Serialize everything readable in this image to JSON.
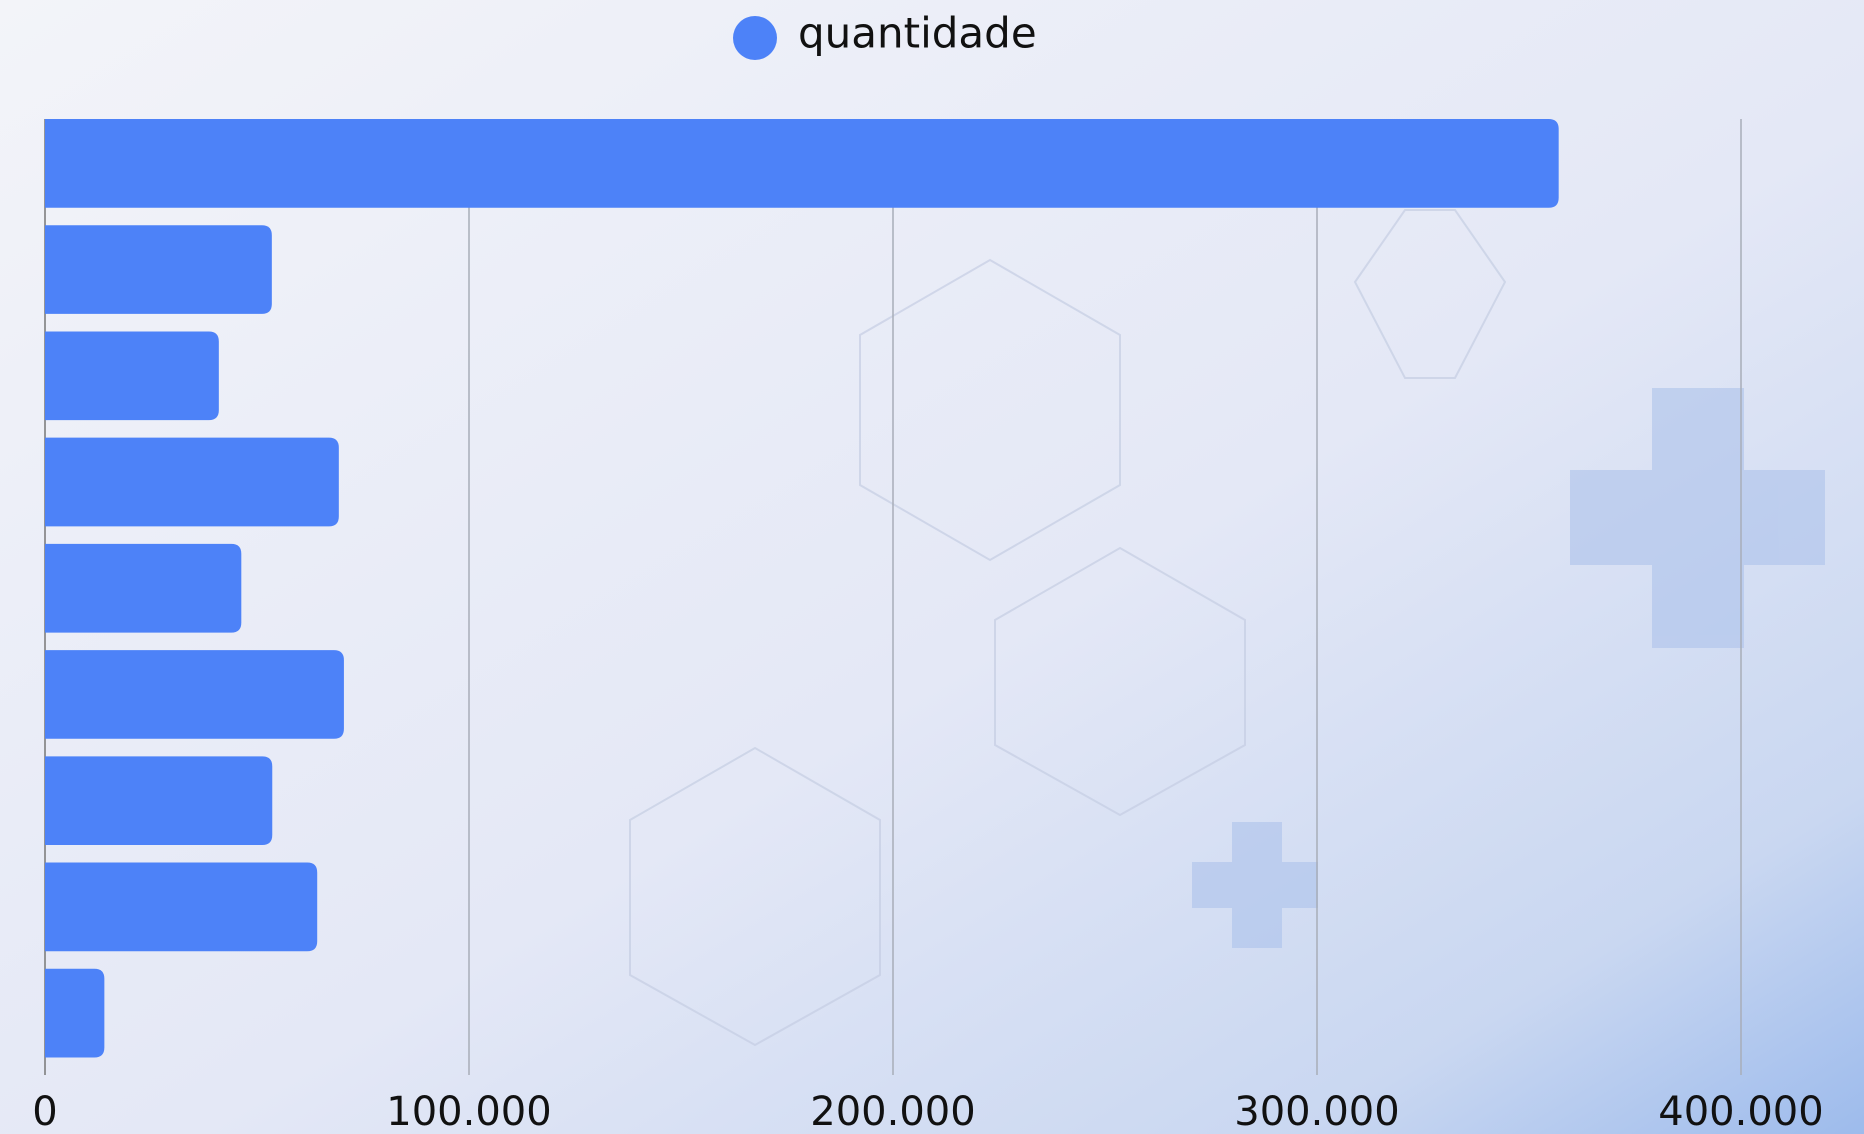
{
  "chart_data": {
    "type": "bar",
    "orientation": "horizontal",
    "categories": [
      null,
      null,
      null,
      null,
      null,
      null,
      null,
      null,
      null
    ],
    "series": [
      {
        "name": "quantidade",
        "color": "#4d82f8",
        "values": [
          357000,
          53500,
          41000,
          69300,
          46300,
          70500,
          53600,
          64200,
          14000
        ]
      }
    ],
    "xlim": [
      0,
      400000
    ],
    "xticks": [
      0,
      {
        "value": 100000,
        "label": "100.000"
      },
      {
        "value": 200000,
        "label": "200.000"
      },
      {
        "value": 300000,
        "label": "300.000"
      },
      {
        "value": 400000,
        "label": "400.000"
      }
    ],
    "grid": true,
    "legend": "top"
  }
}
